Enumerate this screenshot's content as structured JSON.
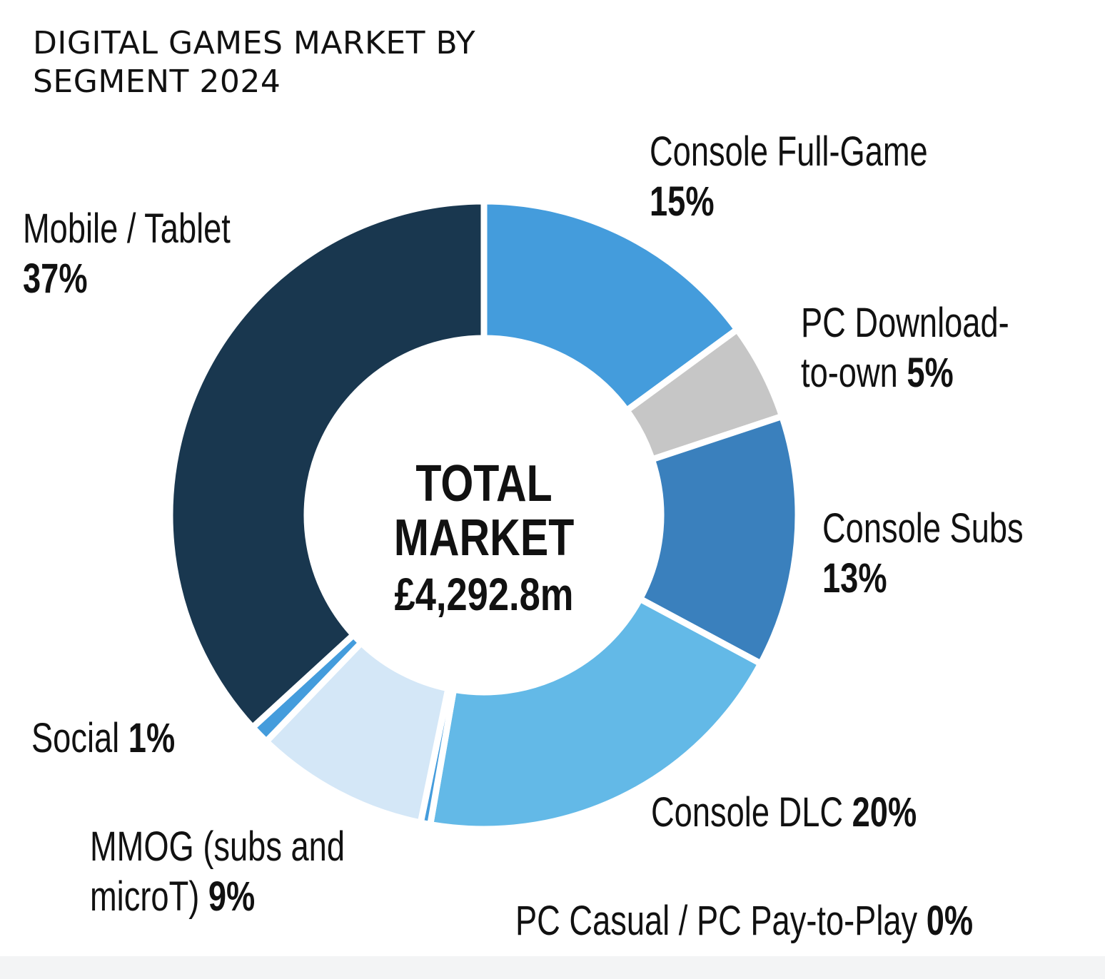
{
  "chart_data": {
    "type": "pie",
    "title": "DIGITAL GAMES MARKET BY SEGMENT 2024",
    "center_label": "TOTAL MARKET",
    "center_value": "£4,292.8m",
    "slices": [
      {
        "name": "Console Full-Game",
        "value": 15,
        "label": "15%",
        "color": "#449cdc"
      },
      {
        "name": "PC Download-to-own",
        "value": 5,
        "label": "5%",
        "color": "#c6c6c6"
      },
      {
        "name": "Console Subs",
        "value": 13,
        "label": "13%",
        "color": "#3a80bd"
      },
      {
        "name": "Console DLC",
        "value": 20,
        "label": "20%",
        "color": "#63b9e7"
      },
      {
        "name": "PC Casual / PC Pay-to-Play",
        "value": 0.5,
        "label": "0%",
        "color": "#449cdc"
      },
      {
        "name": "MMOG (subs and microT)",
        "value": 9,
        "label": "9%",
        "color": "#d4e7f7"
      },
      {
        "name": "Social",
        "value": 1,
        "label": "1%",
        "color": "#449cdc"
      },
      {
        "name": "Mobile / Tablet",
        "value": 37,
        "label": "37%",
        "color": "#19374f"
      }
    ]
  },
  "labels": {
    "console_full_game": {
      "line1": "Console Full-Game",
      "pct": "15%"
    },
    "pc_download": {
      "line1": "PC Download-",
      "line2": "to-own",
      "pct": "5%"
    },
    "console_subs": {
      "line1": "Console Subs",
      "pct": "13%"
    },
    "console_dlc": {
      "line1": "Console DLC",
      "pct": "20%"
    },
    "pc_casual": {
      "line1": "PC Casual / PC Pay-to-Play",
      "pct": "0%"
    },
    "mmog": {
      "line1": "MMOG (subs and",
      "line2": "microT)",
      "pct": "9%"
    },
    "social": {
      "line1": "Social",
      "pct": "1%"
    },
    "mobile": {
      "line1": "Mobile / Tablet",
      "pct": "37%"
    }
  }
}
